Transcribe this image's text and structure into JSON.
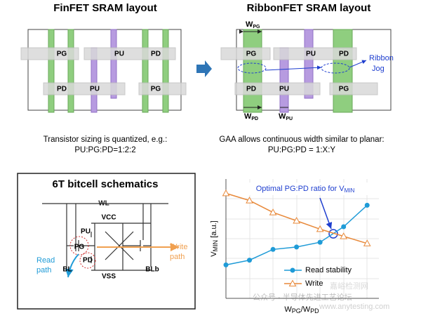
{
  "titles": {
    "left": "FinFET SRAM layout",
    "right": "RibbonFET SRAM layout"
  },
  "finfet": {
    "labels": [
      "PG",
      "PU",
      "PD",
      "PD",
      "PU",
      "PG"
    ],
    "caption": [
      "Transistor sizing is quantized, e.g.:",
      "PU:PG:PD=1:2:2"
    ]
  },
  "ribbonfet": {
    "labels": [
      "PG",
      "PU",
      "PD",
      "PD",
      "PU",
      "PG"
    ],
    "widths": [
      {
        "main": "W",
        "sub": "PG"
      },
      {
        "main": "W",
        "sub": "PD"
      },
      {
        "main": "W",
        "sub": "PU"
      }
    ],
    "jog": [
      "Ribbon",
      "Jog"
    ],
    "caption": [
      "GAA allows continuous width similar to planar:",
      "PU:PG:PD = 1:X:Y"
    ]
  },
  "schematic": {
    "title": "6T bitcell schematics",
    "nodes": [
      "WL",
      "VCC",
      "PU",
      "PG",
      "PD",
      "BL",
      "VSS",
      "BLb"
    ],
    "write_path": [
      "Write",
      "path"
    ],
    "read_path": [
      "Read",
      "path"
    ]
  },
  "chart_data": {
    "type": "line",
    "annotation": {
      "main": "Optimal PG:PD ratio for V",
      "sub": "MIN"
    },
    "y_label": {
      "main": "V",
      "sub": "MIN",
      "rest": " [a.u.]"
    },
    "x_label": {
      "main": "W",
      "sub": "PG",
      "mid": "/W",
      "sub2": "PD"
    },
    "x": [
      1,
      2,
      3,
      4,
      5,
      6,
      7
    ],
    "xlim": [
      1,
      7.5
    ],
    "ylim": [
      0,
      10
    ],
    "series": [
      {
        "name": "Read stability",
        "color": "#1f9bd7",
        "values": [
          2.8,
          3.2,
          4.1,
          4.3,
          4.7,
          6.0,
          7.8
        ]
      },
      {
        "name": "Write",
        "color": "#e8893a",
        "values": [
          8.8,
          8.2,
          7.2,
          6.5,
          5.8,
          5.2,
          4.6
        ]
      }
    ]
  },
  "watermark": [
    "公众号 · 半导体先进工艺论坛",
    "嘉峪检测网",
    "www.anytesting.com"
  ]
}
